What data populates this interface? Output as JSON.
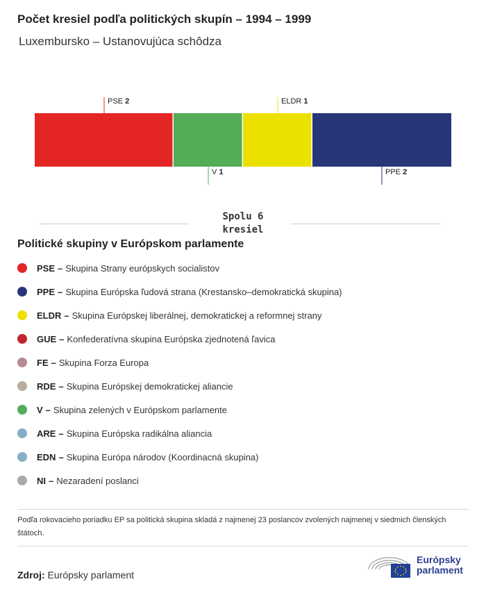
{
  "header": {
    "title": "Počet kresiel podľa politických skupín – 1994 – 1999",
    "subtitle": "Luxembursko – Ustanovujúca schôdza"
  },
  "chart_data": {
    "type": "bar",
    "orientation": "stacked-horizontal",
    "categories": [
      "PSE",
      "V",
      "ELDR",
      "PPE"
    ],
    "values": [
      2,
      1,
      1,
      2
    ],
    "colors": [
      "#e42525",
      "#52ac58",
      "#ece000",
      "#263679"
    ],
    "label_positions": [
      "top",
      "bottom",
      "top",
      "bottom"
    ],
    "total": 6
  },
  "total": {
    "line1": "Spolu 6",
    "line2": "kresiel"
  },
  "legend": {
    "heading": "Politické skupiny v Európskom parlamente",
    "items": [
      {
        "abbr": "PSE",
        "label": "Skupina Strany európskych socialistov",
        "color": "#e42525"
      },
      {
        "abbr": "PPE",
        "label": "Skupina Európska ľudová strana (Krestansko–demokratická skupina)",
        "color": "#263679"
      },
      {
        "abbr": "ELDR",
        "label": "Skupina Európskej liberálnej, demokratickej a reformnej strany",
        "color": "#ece000"
      },
      {
        "abbr": "GUE",
        "label": "Konfederatívna skupina Európska zjednotená ľavica",
        "color": "#c0262e"
      },
      {
        "abbr": "FE",
        "label": "Skupina Forza Europa",
        "color": "#b58a90"
      },
      {
        "abbr": "RDE",
        "label": "Skupina Európskej demokratickej aliancie",
        "color": "#b9ada1"
      },
      {
        "abbr": "V",
        "label": "Skupina zelených v Európskom parlamente",
        "color": "#52ac58"
      },
      {
        "abbr": "ARE",
        "label": "Skupina Európska radikálna aliancia",
        "color": "#86aec6"
      },
      {
        "abbr": "EDN",
        "label": "Skupina Európa národov (Koordinacná skupina)",
        "color": "#86aec6"
      },
      {
        "abbr": "NI",
        "label": "Nezaradení poslanci",
        "color": "#a9a9a9"
      }
    ]
  },
  "footnote": "Podľa rokovacieho poriadku EP sa politická skupina skladá z najmenej 23 poslancov zvolených najmenej v siedmich členských štátoch.",
  "source": {
    "label": "Zdroj:",
    "value": "Európsky parlament"
  },
  "logo": {
    "line1": "Európsky",
    "line2": "parlament",
    "icon": "european-parliament-logo"
  }
}
